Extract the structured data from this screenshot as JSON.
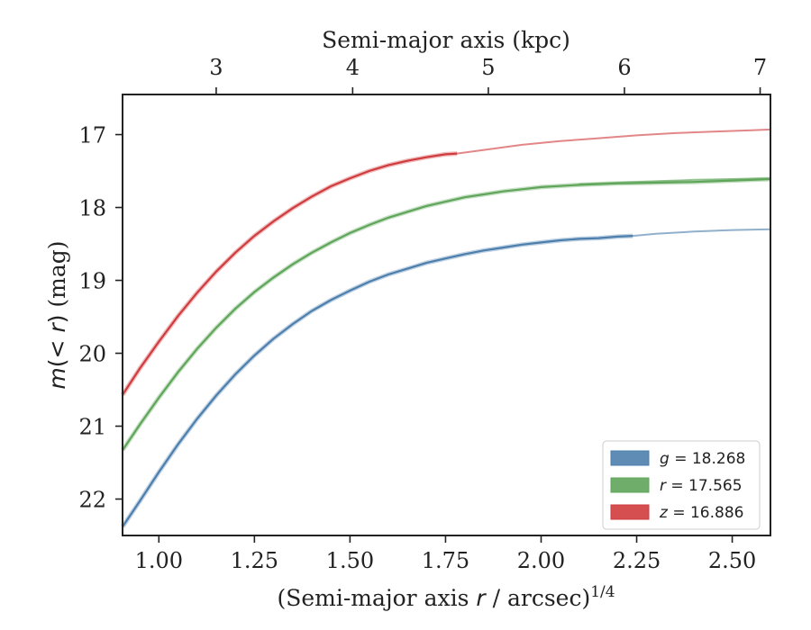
{
  "chart_data": {
    "type": "line",
    "xlabel_prefix": "(Semi-major axis ",
    "xlabel_var": "r",
    "xlabel_mid": " / arcsec)",
    "xlabel_sup": "1/4",
    "x2label": "Semi-major axis (kpc)",
    "ylabel_m": "m",
    "ylabel_paren": "(< ",
    "ylabel_r": "r",
    "ylabel_close": ")",
    "ylabel_unit": " (mag)",
    "xlim": [
      0.905,
      2.6
    ],
    "ylim": [
      22.5,
      16.45
    ],
    "y_inverted": true,
    "xticks": [
      1.0,
      1.25,
      1.5,
      1.75,
      2.0,
      2.25,
      2.5
    ],
    "xtick_labels": [
      "1.00",
      "1.25",
      "1.50",
      "1.75",
      "2.00",
      "2.25",
      "2.50"
    ],
    "yticks": [
      17,
      18,
      19,
      20,
      21,
      22
    ],
    "ytick_labels": [
      "17",
      "18",
      "19",
      "20",
      "21",
      "22"
    ],
    "top_ticks": [
      3,
      4,
      5,
      6,
      7
    ],
    "top_tick_labels": [
      "3",
      "4",
      "5",
      "6",
      "7"
    ],
    "top_tick_positions_x": [
      1.15,
      1.507,
      1.862,
      2.218,
      2.573
    ],
    "grid": false,
    "legend_position": "bottom-right",
    "series": [
      {
        "name": "g",
        "legend_label": "g = 18.268",
        "legend_var": "g",
        "legend_val": " = 18.268",
        "color": "#4C7FAD",
        "x": [
          0.905,
          0.95,
          1.0,
          1.05,
          1.1,
          1.15,
          1.2,
          1.25,
          1.3,
          1.35,
          1.4,
          1.45,
          1.5,
          1.55,
          1.6,
          1.65,
          1.7,
          1.75,
          1.8,
          1.85,
          1.9,
          1.95,
          2.0,
          2.05,
          2.1,
          2.15,
          2.2,
          2.24
        ],
        "y": [
          22.38,
          22.03,
          21.63,
          21.25,
          20.9,
          20.58,
          20.29,
          20.03,
          19.8,
          19.6,
          19.42,
          19.27,
          19.14,
          19.02,
          18.92,
          18.84,
          18.76,
          18.7,
          18.64,
          18.59,
          18.55,
          18.51,
          18.48,
          18.45,
          18.43,
          18.42,
          18.4,
          18.39
        ],
        "ext_x": [
          2.24,
          2.3,
          2.4,
          2.5,
          2.6
        ],
        "ext_y": [
          18.39,
          18.36,
          18.33,
          18.31,
          18.3
        ]
      },
      {
        "name": "r",
        "legend_label": "r = 17.565",
        "legend_var": "r",
        "legend_val": " = 17.565",
        "color": "#5FA55A",
        "x": [
          0.905,
          0.95,
          1.0,
          1.05,
          1.1,
          1.15,
          1.2,
          1.25,
          1.3,
          1.35,
          1.4,
          1.45,
          1.5,
          1.55,
          1.6,
          1.65,
          1.7,
          1.75,
          1.8,
          1.85,
          1.9,
          1.95,
          2.0,
          2.1,
          2.2,
          2.3,
          2.4,
          2.5,
          2.6
        ],
        "y": [
          21.33,
          20.98,
          20.61,
          20.26,
          19.94,
          19.65,
          19.39,
          19.16,
          18.96,
          18.78,
          18.62,
          18.48,
          18.35,
          18.24,
          18.14,
          18.06,
          17.98,
          17.92,
          17.86,
          17.82,
          17.78,
          17.75,
          17.72,
          17.69,
          17.67,
          17.66,
          17.65,
          17.63,
          17.61
        ],
        "ext_x": [
          2.1,
          2.2,
          2.3,
          2.4,
          2.5,
          2.6
        ],
        "ext_y": [
          17.68,
          17.66,
          17.64,
          17.62,
          17.61,
          17.6
        ]
      },
      {
        "name": "z",
        "legend_label": "z = 16.886",
        "legend_var": "z",
        "legend_val": " = 16.886",
        "color": "#D03C3E",
        "x": [
          0.905,
          0.95,
          1.0,
          1.05,
          1.1,
          1.15,
          1.2,
          1.25,
          1.3,
          1.35,
          1.4,
          1.45,
          1.5,
          1.55,
          1.6,
          1.65,
          1.7,
          1.75,
          1.78
        ],
        "y": [
          20.57,
          20.21,
          19.84,
          19.49,
          19.17,
          18.88,
          18.62,
          18.39,
          18.19,
          18.01,
          17.85,
          17.71,
          17.6,
          17.5,
          17.42,
          17.36,
          17.31,
          17.27,
          17.26
        ],
        "ext_x": [
          1.78,
          1.85,
          1.95,
          2.05,
          2.15,
          2.25,
          2.35,
          2.45,
          2.55,
          2.6
        ],
        "ext_y": [
          17.26,
          17.21,
          17.14,
          17.09,
          17.05,
          17.01,
          16.98,
          16.96,
          16.94,
          16.93
        ]
      }
    ]
  }
}
